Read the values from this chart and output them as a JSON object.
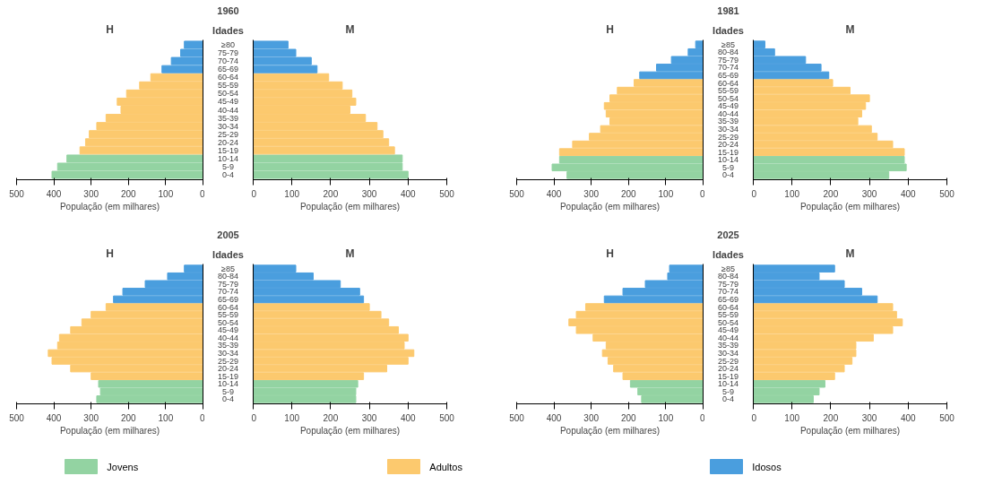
{
  "chart_data": [
    {
      "type": "bar",
      "orientation": "horizontal",
      "title": "H",
      "annotations": [
        "1960"
      ],
      "xlabel": "População (em milhares)",
      "tick_labels": "x",
      "xlim": [
        500,
        0
      ],
      "xticks": [
        0,
        100,
        200,
        300,
        400,
        500
      ],
      "categories": [
        null,
        null,
        null,
        null,
        null,
        null,
        null,
        null,
        null,
        null,
        null,
        null,
        null,
        null,
        null,
        null,
        null
      ],
      "series": [
        {
          "color": "#93d3a2",
          "values": [
            null,
            null,
            null,
            null,
            null,
            null,
            null,
            null,
            null,
            null,
            null,
            null,
            null,
            null,
            365,
            390,
            405
          ]
        },
        {
          "color": "#fcc96e",
          "values": [
            null,
            null,
            null,
            null,
            140,
            170,
            205,
            230,
            220,
            260,
            285,
            305,
            315,
            330,
            null,
            null,
            null
          ]
        },
        {
          "color": "#4a9ede",
          "values": [
            50,
            60,
            85,
            110,
            null,
            null,
            null,
            null,
            null,
            null,
            null,
            null,
            null,
            null,
            null,
            null,
            null
          ]
        }
      ]
    },
    {
      "type": "bar",
      "orientation": "horizontal",
      "title": "M",
      "ylabel": "Idades",
      "xlabel": "População (em milhares)",
      "xlim": [
        0,
        500
      ],
      "xticks": [
        0,
        100,
        200,
        300,
        400,
        500
      ],
      "categories": [
        "≥80",
        "75-79",
        "70-74",
        "65-69",
        "60-64",
        "55-59",
        "50-54",
        "45-49",
        "40-44",
        "35-39",
        "30-34",
        "25-29",
        "20-24",
        "15-19",
        "10-14",
        "5-9",
        "0-4"
      ],
      "series": [
        {
          "color": "#93d3a2",
          "values": [
            null,
            null,
            null,
            null,
            null,
            null,
            null,
            null,
            null,
            null,
            null,
            null,
            null,
            null,
            385,
            385,
            400
          ]
        },
        {
          "color": "#fcc96e",
          "values": [
            null,
            null,
            null,
            null,
            195,
            230,
            255,
            265,
            250,
            290,
            320,
            335,
            350,
            365,
            null,
            null,
            null
          ]
        },
        {
          "color": "#4a9ede",
          "values": [
            90,
            110,
            150,
            165,
            null,
            null,
            null,
            null,
            null,
            null,
            null,
            null,
            null,
            null,
            null,
            null,
            null
          ]
        }
      ]
    },
    {
      "type": "bar",
      "orientation": "horizontal",
      "title": "H",
      "annotations": [
        "1981"
      ],
      "xlabel": "População (em milhares)",
      "tick_labels": "x",
      "xlim": [
        500,
        0
      ],
      "xticks": [
        0,
        100,
        200,
        300,
        400,
        500
      ],
      "categories": [
        null,
        null,
        null,
        null,
        null,
        null,
        null,
        null,
        null,
        null,
        null,
        null,
        null,
        null,
        null,
        null,
        null,
        null
      ],
      "series": [
        {
          "color": "#93d3a2",
          "values": [
            null,
            null,
            null,
            null,
            null,
            null,
            null,
            null,
            null,
            null,
            null,
            null,
            null,
            null,
            null,
            385,
            405,
            365
          ]
        },
        {
          "color": "#fcc96e",
          "values": [
            null,
            null,
            null,
            null,
            null,
            185,
            230,
            250,
            265,
            260,
            250,
            275,
            305,
            350,
            385,
            null,
            null,
            null
          ]
        },
        {
          "color": "#4a9ede",
          "values": [
            20,
            40,
            85,
            125,
            170,
            null,
            null,
            null,
            null,
            null,
            null,
            null,
            null,
            null,
            null,
            null,
            null,
            null
          ]
        }
      ]
    },
    {
      "type": "bar",
      "orientation": "horizontal",
      "title": "M",
      "ylabel": "Idades",
      "xlabel": "População (em milhares)",
      "xlim": [
        0,
        500
      ],
      "xticks": [
        0,
        100,
        200,
        300,
        400,
        500
      ],
      "categories": [
        "≥85",
        "80-84",
        "75-79",
        "70-74",
        "65-69",
        "60-64",
        "55-59",
        "50-54",
        "45-49",
        "40-44",
        "35-39",
        "30-34",
        "25-29",
        "20-24",
        "15-19",
        "10-14",
        "5-9",
        "0-4"
      ],
      "series": [
        {
          "color": "#93d3a2",
          "values": [
            null,
            null,
            null,
            null,
            null,
            null,
            null,
            null,
            null,
            null,
            null,
            null,
            null,
            null,
            null,
            390,
            395,
            350
          ]
        },
        {
          "color": "#fcc96e",
          "values": [
            null,
            null,
            null,
            null,
            null,
            205,
            250,
            300,
            290,
            280,
            270,
            305,
            320,
            360,
            390,
            null,
            null,
            null
          ]
        },
        {
          "color": "#4a9ede",
          "values": [
            30,
            55,
            135,
            175,
            195,
            null,
            null,
            null,
            null,
            null,
            null,
            null,
            null,
            null,
            null,
            null,
            null,
            null
          ]
        }
      ]
    },
    {
      "type": "bar",
      "orientation": "horizontal",
      "title": "H",
      "annotations": [
        "2005"
      ],
      "xlabel": "População (em milhares)",
      "tick_labels": "x",
      "xlim": [
        500,
        0
      ],
      "xticks": [
        0,
        100,
        200,
        300,
        400,
        500
      ],
      "categories": [
        null,
        null,
        null,
        null,
        null,
        null,
        null,
        null,
        null,
        null,
        null,
        null,
        null,
        null,
        null,
        null,
        null,
        null
      ],
      "series": [
        {
          "color": "#93d3a2",
          "values": [
            null,
            null,
            null,
            null,
            null,
            null,
            null,
            null,
            null,
            null,
            null,
            null,
            null,
            null,
            null,
            280,
            275,
            285
          ]
        },
        {
          "color": "#fcc96e",
          "values": [
            null,
            null,
            null,
            null,
            null,
            260,
            300,
            325,
            355,
            385,
            390,
            415,
            405,
            355,
            300,
            null,
            null,
            null
          ]
        },
        {
          "color": "#4a9ede",
          "values": [
            50,
            95,
            155,
            215,
            240,
            null,
            null,
            null,
            null,
            null,
            null,
            null,
            null,
            null,
            null,
            null,
            null,
            null
          ]
        }
      ]
    },
    {
      "type": "bar",
      "orientation": "horizontal",
      "title": "M",
      "ylabel": "Idades",
      "xlabel": "População (em milhares)",
      "xlim": [
        0,
        500
      ],
      "xticks": [
        0,
        100,
        200,
        300,
        400,
        500
      ],
      "categories": [
        "≥85",
        "80-84",
        "75-79",
        "70-74",
        "65-69",
        "60-64",
        "55-59",
        "50-54",
        "45-49",
        "40-44",
        "35-39",
        "30-34",
        "25-29",
        "20-24",
        "15-19",
        "10-14",
        "5-9",
        "0-4"
      ],
      "series": [
        {
          "color": "#93d3a2",
          "values": [
            null,
            null,
            null,
            null,
            null,
            null,
            null,
            null,
            null,
            null,
            null,
            null,
            null,
            null,
            null,
            270,
            265,
            265
          ]
        },
        {
          "color": "#fcc96e",
          "values": [
            null,
            null,
            null,
            null,
            null,
            300,
            330,
            350,
            375,
            400,
            390,
            415,
            400,
            345,
            285,
            null,
            null,
            null
          ]
        },
        {
          "color": "#4a9ede",
          "values": [
            110,
            155,
            225,
            275,
            285,
            null,
            null,
            null,
            null,
            null,
            null,
            null,
            null,
            null,
            null,
            null,
            null,
            null
          ]
        }
      ]
    },
    {
      "type": "bar",
      "orientation": "horizontal",
      "title": "H",
      "annotations": [
        "2025"
      ],
      "xlabel": "População (em milhares)",
      "tick_labels": "x",
      "xlim": [
        500,
        0
      ],
      "xticks": [
        0,
        100,
        200,
        300,
        400,
        500
      ],
      "categories": [
        null,
        null,
        null,
        null,
        null,
        null,
        null,
        null,
        null,
        null,
        null,
        null,
        null,
        null,
        null,
        null,
        null,
        null
      ],
      "series": [
        {
          "color": "#93d3a2",
          "values": [
            null,
            null,
            null,
            null,
            null,
            null,
            null,
            null,
            null,
            null,
            null,
            null,
            null,
            null,
            null,
            195,
            175,
            165
          ]
        },
        {
          "color": "#fcc96e",
          "values": [
            null,
            null,
            null,
            null,
            null,
            315,
            340,
            360,
            340,
            295,
            260,
            270,
            255,
            240,
            215,
            null,
            null,
            null
          ]
        },
        {
          "color": "#4a9ede",
          "values": [
            90,
            95,
            155,
            215,
            265,
            null,
            null,
            null,
            null,
            null,
            null,
            null,
            null,
            null,
            null,
            null,
            null,
            null
          ]
        }
      ]
    },
    {
      "type": "bar",
      "orientation": "horizontal",
      "title": "M",
      "ylabel": "Idades",
      "xlabel": "População (em milhares)",
      "xlim": [
        0,
        500
      ],
      "xticks": [
        0,
        100,
        200,
        300,
        400,
        500
      ],
      "legend": "bottom",
      "categories": [
        "≥85",
        "80-84",
        "75-79",
        "70-74",
        "65-69",
        "60-64",
        "55-59",
        "50-54",
        "45-49",
        "40-44",
        "35-39",
        "30-34",
        "25-29",
        "20-24",
        "15-19",
        "10-14",
        "5-9",
        "0-4"
      ],
      "series": [
        {
          "name": "Jovens",
          "color": "#93d3a2",
          "values": [
            null,
            null,
            null,
            null,
            null,
            null,
            null,
            null,
            null,
            null,
            null,
            null,
            null,
            null,
            null,
            185,
            170,
            155
          ]
        },
        {
          "name": "Adultos",
          "color": "#fcc96e",
          "values": [
            null,
            null,
            null,
            null,
            null,
            360,
            370,
            385,
            360,
            310,
            265,
            265,
            255,
            235,
            210,
            null,
            null,
            null
          ]
        },
        {
          "name": "Idosos",
          "color": "#4a9ede",
          "values": [
            210,
            170,
            235,
            280,
            320,
            null,
            null,
            null,
            null,
            null,
            null,
            null,
            null,
            null,
            null,
            null,
            null,
            null
          ]
        }
      ]
    }
  ]
}
